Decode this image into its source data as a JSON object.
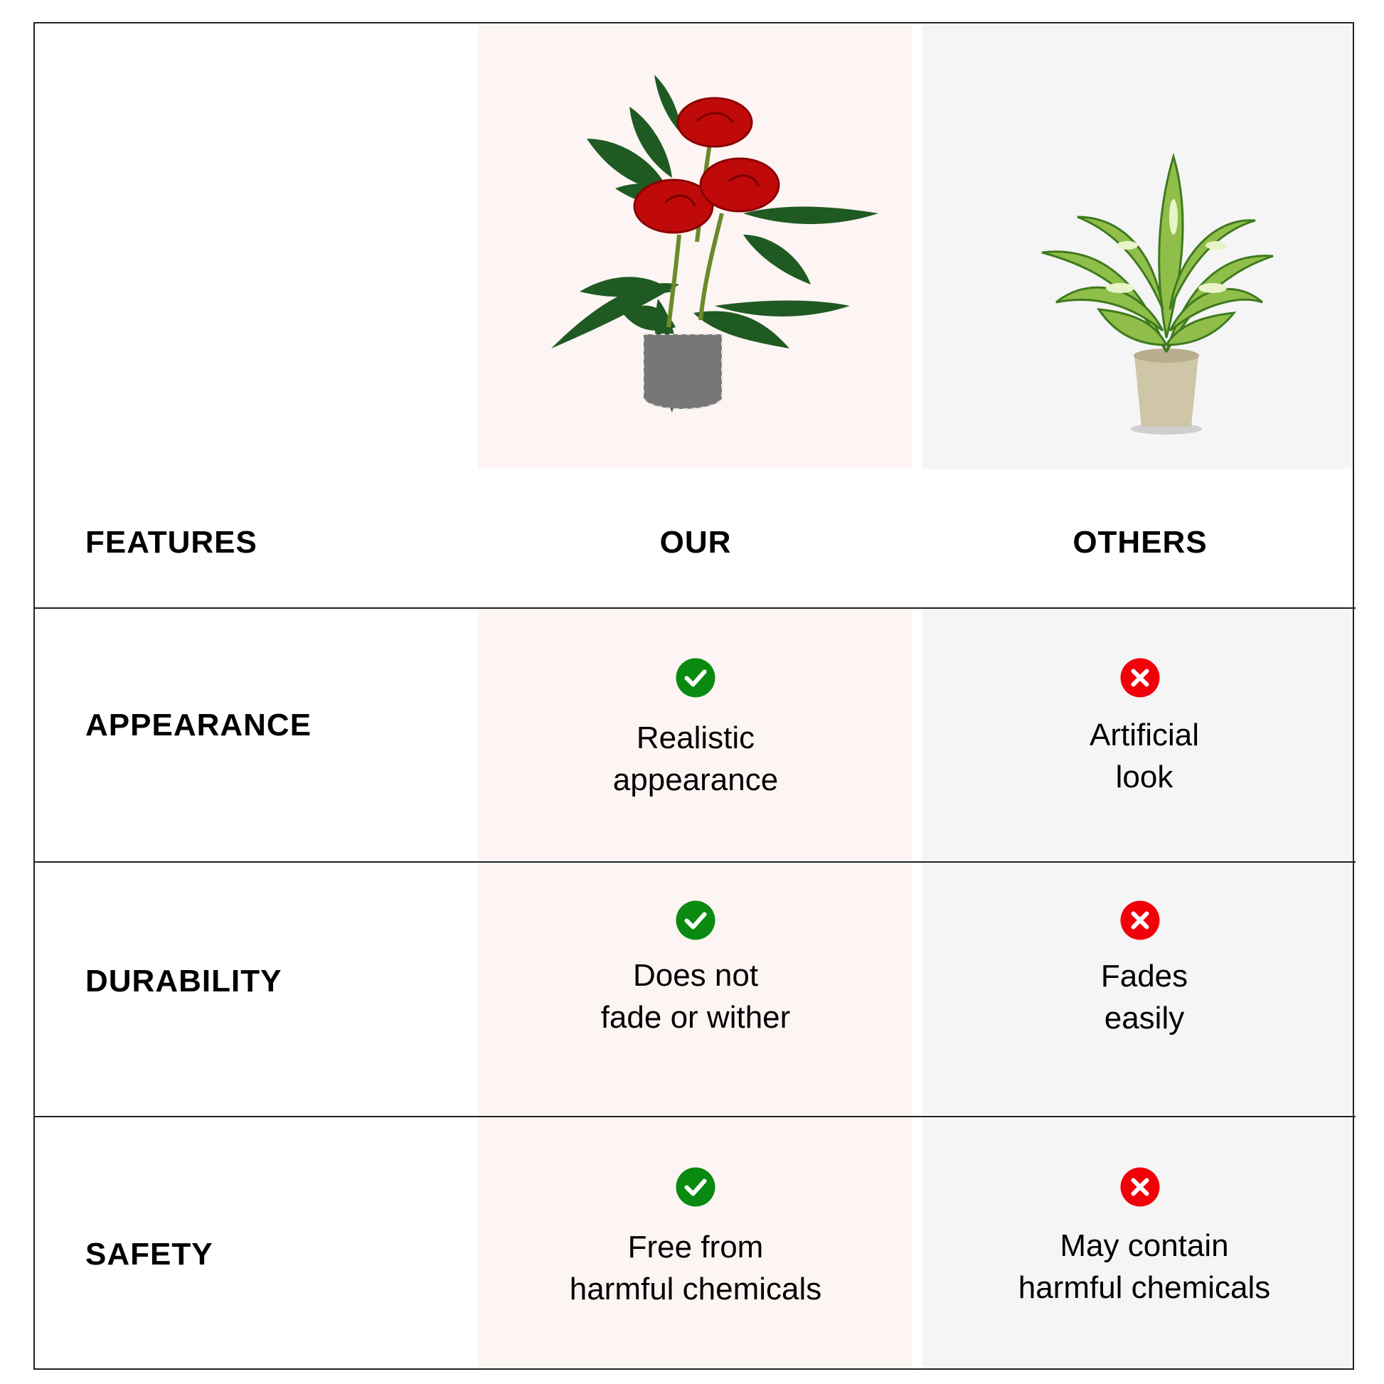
{
  "header": {
    "features": "FEATURES",
    "our": "OUR",
    "others": "OTHERS"
  },
  "colors": {
    "our_column_bg": "#fdf5f3",
    "others_column_bg": "#f5f5f5",
    "check": "#0a8a10",
    "cross": "#f00008",
    "border": "#222222"
  },
  "images": {
    "our": "red-rose-artificial-plant-in-lattice-pot",
    "others": "green-dieffenbachia-plant-in-beige-pot"
  },
  "rows": [
    {
      "feature": "APPEARANCE",
      "our_icon": "check-icon",
      "our_lines": [
        "Realistic",
        "appearance"
      ],
      "others_icon": "cross-icon",
      "others_lines": [
        "Artificial",
        "look"
      ]
    },
    {
      "feature": "DURABILITY",
      "our_icon": "check-icon",
      "our_lines": [
        "Does not",
        "fade or wither"
      ],
      "others_icon": "cross-icon",
      "others_lines": [
        "Fades",
        "easily"
      ]
    },
    {
      "feature": "SAFETY",
      "our_icon": "check-icon",
      "our_lines": [
        "Free from",
        "harmful chemicals"
      ],
      "others_icon": "cross-icon",
      "others_lines": [
        "May contain",
        "harmful chemicals"
      ]
    }
  ]
}
